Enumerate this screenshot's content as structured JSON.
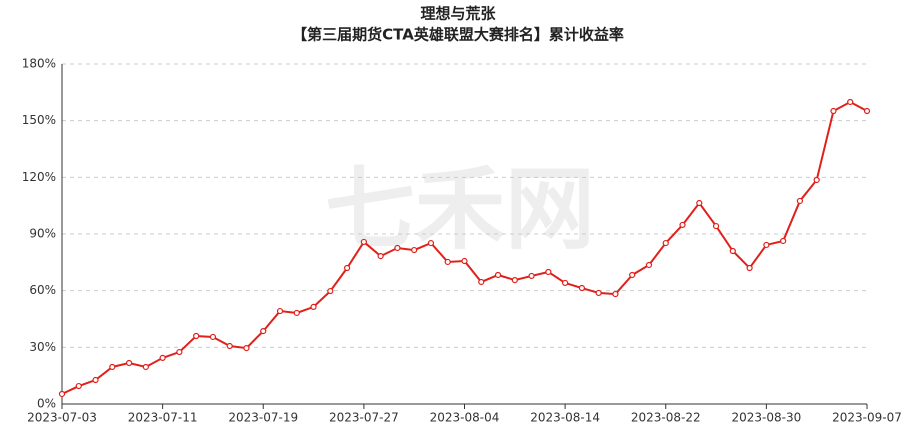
{
  "chart_data": {
    "type": "line",
    "title": "理想与荒张",
    "subtitle": "【第三届期货CTA英雄联盟大赛排名】累计收益率",
    "watermark": "七禾网",
    "categories": [
      "2023-07-03",
      null,
      null,
      null,
      null,
      null,
      "2023-07-11",
      null,
      null,
      null,
      null,
      null,
      "2023-07-19",
      null,
      null,
      null,
      null,
      null,
      "2023-07-27",
      null,
      null,
      null,
      null,
      null,
      "2023-08-04",
      null,
      null,
      null,
      null,
      null,
      "2023-08-14",
      null,
      null,
      null,
      null,
      null,
      "2023-08-22",
      null,
      null,
      null,
      null,
      null,
      "2023-08-30",
      null,
      null,
      null,
      null,
      null,
      "2023-09-07"
    ],
    "series": [
      {
        "color": "#e0201a",
        "values": [
          5.3,
          9.5,
          12.7,
          19.6,
          21.7,
          19.6,
          24.4,
          27.5,
          36,
          35.5,
          30.7,
          29.6,
          38.6,
          49.2,
          48.2,
          51.4,
          59.8,
          72,
          85.8,
          78.3,
          82.6,
          81.5,
          85.2,
          75.2,
          75.7,
          64.6,
          68.3,
          65.6,
          67.8,
          69.9,
          64.1,
          61.4,
          58.8,
          58.2,
          68.3,
          73.6,
          85.2,
          94.8,
          106.4,
          94.2,
          81,
          72,
          84.2,
          86.3,
          107.5,
          118.6,
          155.1,
          159.9,
          155.1
        ]
      }
    ],
    "ylim": [
      0,
      180
    ],
    "yticks": [
      {
        "value": 0,
        "label": "0%"
      },
      {
        "value": 30,
        "label": "30%"
      },
      {
        "value": 60,
        "label": "60%"
      },
      {
        "value": 90,
        "label": "90%"
      },
      {
        "value": 120,
        "label": "120%"
      },
      {
        "value": 150,
        "label": "150%"
      },
      {
        "value": 180,
        "label": "180%"
      }
    ],
    "grid": true
  }
}
